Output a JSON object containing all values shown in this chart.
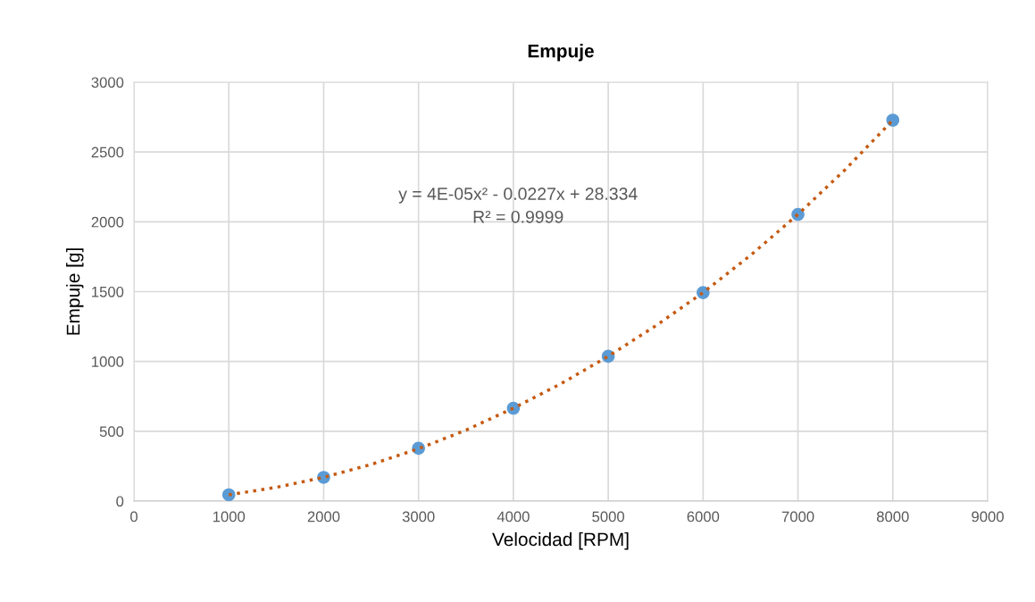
{
  "chart_data": {
    "type": "scatter",
    "title": "Empuje",
    "xlabel": "Velocidad [RPM]",
    "ylabel": "Empuje [g]",
    "xlim": [
      0,
      9000
    ],
    "xticks": [
      0,
      1000,
      2000,
      3000,
      4000,
      5000,
      6000,
      7000,
      8000,
      9000
    ],
    "ylim": [
      0,
      3000
    ],
    "yticks": [
      0,
      500,
      1000,
      1500,
      2000,
      2500,
      3000
    ],
    "grid": true,
    "series": [
      {
        "color": "#5b9bd5",
        "marker": "circle",
        "x": [
          1000,
          2000,
          3000,
          4000,
          5000,
          6000,
          7000,
          8000
        ],
        "values": [
          45,
          170,
          378,
          665,
          1037,
          1493,
          2053,
          2728
        ]
      },
      {
        "type": "line",
        "color": "#c55a11",
        "line_style": "dotted",
        "marker": "none",
        "x": [
          1000,
          1500,
          2000,
          2500,
          3000,
          3500,
          4000,
          4500,
          5000,
          5500,
          6000,
          6500,
          7000,
          7500,
          8000
        ],
        "values": [
          45,
          98,
          170,
          262,
          375,
          508,
          665,
          840,
          1037,
          1255,
          1493,
          1760,
          2053,
          2375,
          2728
        ]
      }
    ],
    "annotations": [
      "y = 4E-05x² - 0.0227x + 28.334",
      "R² = 0.9999"
    ]
  }
}
